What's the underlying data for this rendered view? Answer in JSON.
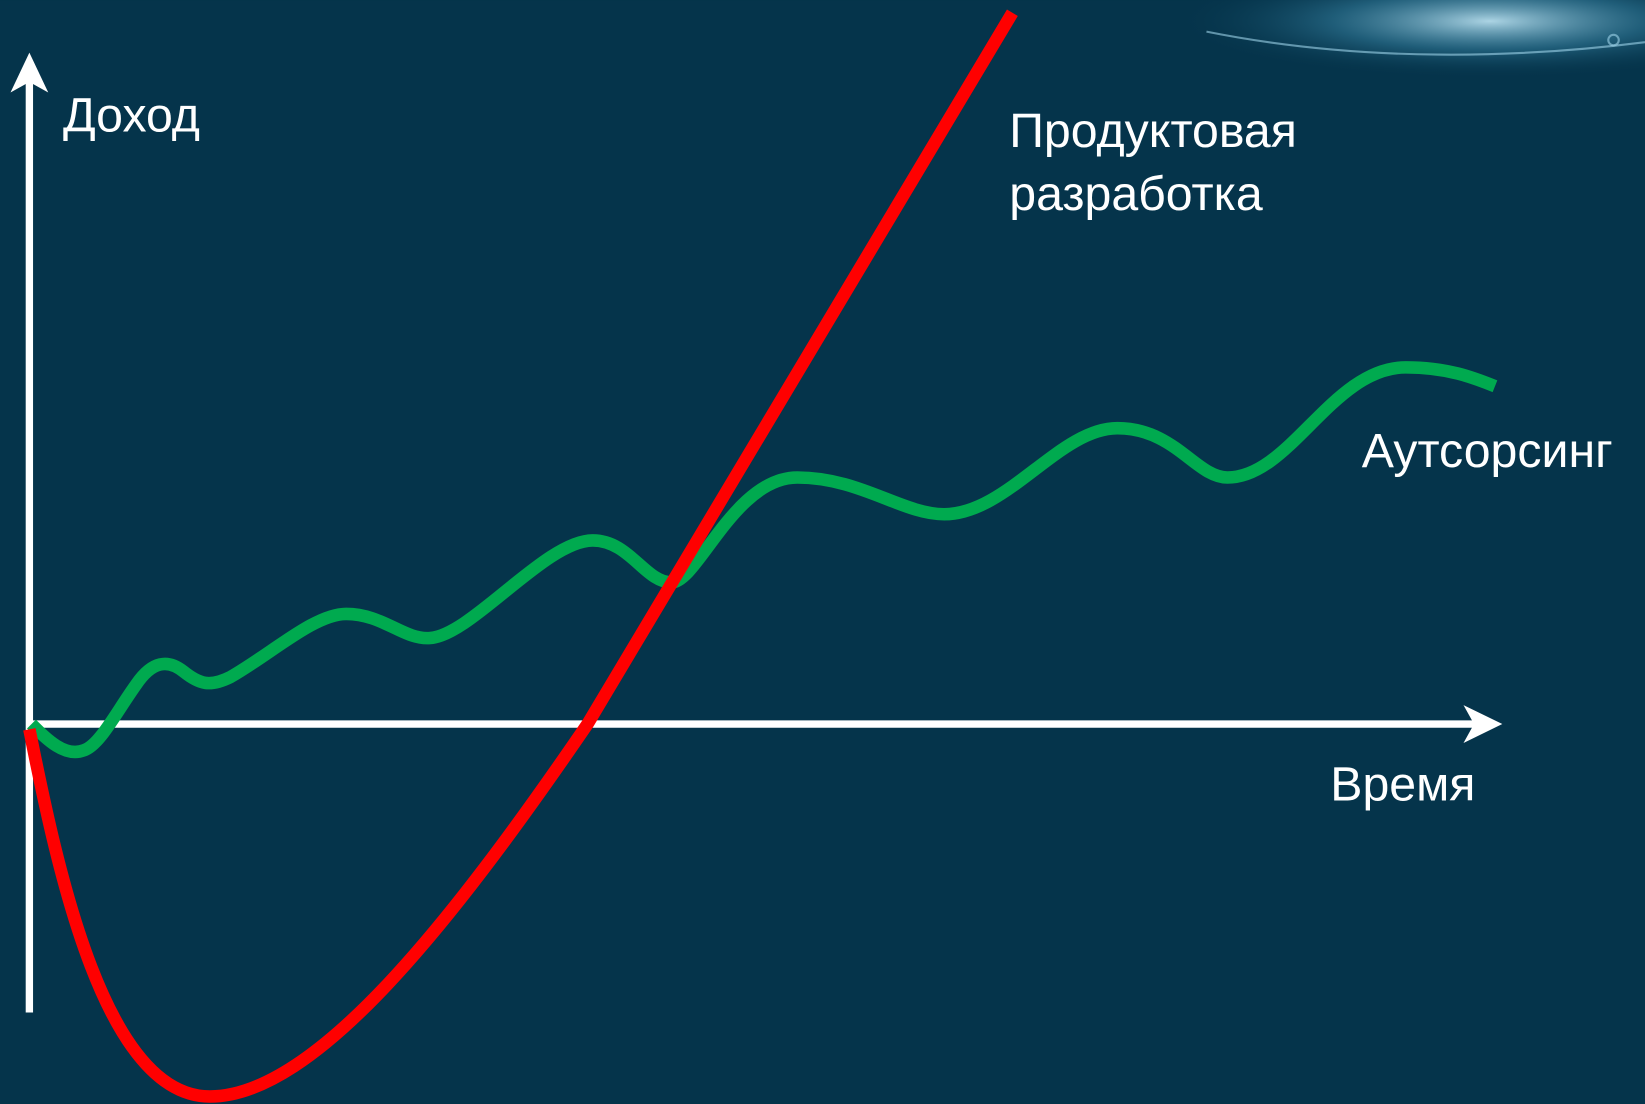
{
  "axes": {
    "y_label": "Доход",
    "x_label": "Время"
  },
  "curves": [
    {
      "label_lines": [
        "Продуктовая",
        "разработка"
      ]
    },
    {
      "label_lines": [
        "Аутсорсинг"
      ]
    }
  ]
}
